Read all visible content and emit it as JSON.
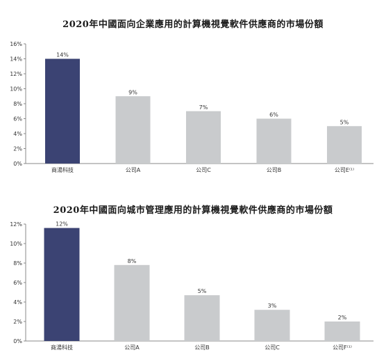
{
  "chart_data": [
    {
      "type": "bar",
      "title": "2020年中國面向企業應用的計算機視覺軟件供應商的市場份額",
      "categories": [
        "商湯科技",
        "公司A",
        "公司C",
        "公司B",
        "公司E⁽¹⁾"
      ],
      "values": [
        14,
        9,
        7,
        6,
        5
      ],
      "value_labels": [
        "14%",
        "9%",
        "7%",
        "6%",
        "5%"
      ],
      "yticks": [
        "0%",
        "2%",
        "4%",
        "6%",
        "8%",
        "10%",
        "12%",
        "14%",
        "16%"
      ],
      "ylim": [
        0,
        16
      ],
      "grid": false,
      "colors": [
        "#3b4373",
        "#c9cbcd",
        "#c9cbcd",
        "#c9cbcd",
        "#c9cbcd"
      ]
    },
    {
      "type": "bar",
      "title": "2020年中國面向城市管理應用的計算機視覺軟件供應商的市場份額",
      "categories": [
        "商湯科技",
        "公司A",
        "公司B",
        "公司C",
        "公司F⁽¹⁾"
      ],
      "values": [
        11.6,
        7.8,
        4.7,
        3.2,
        2.0
      ],
      "value_labels": [
        "12%",
        "8%",
        "5%",
        "3%",
        "2%"
      ],
      "yticks": [
        "0%",
        "2%",
        "4%",
        "6%",
        "8%",
        "10%",
        "12%"
      ],
      "ylim": [
        0,
        12
      ],
      "grid": false,
      "colors": [
        "#3b4373",
        "#c9cbcd",
        "#c9cbcd",
        "#c9cbcd",
        "#c9cbcd"
      ]
    }
  ]
}
